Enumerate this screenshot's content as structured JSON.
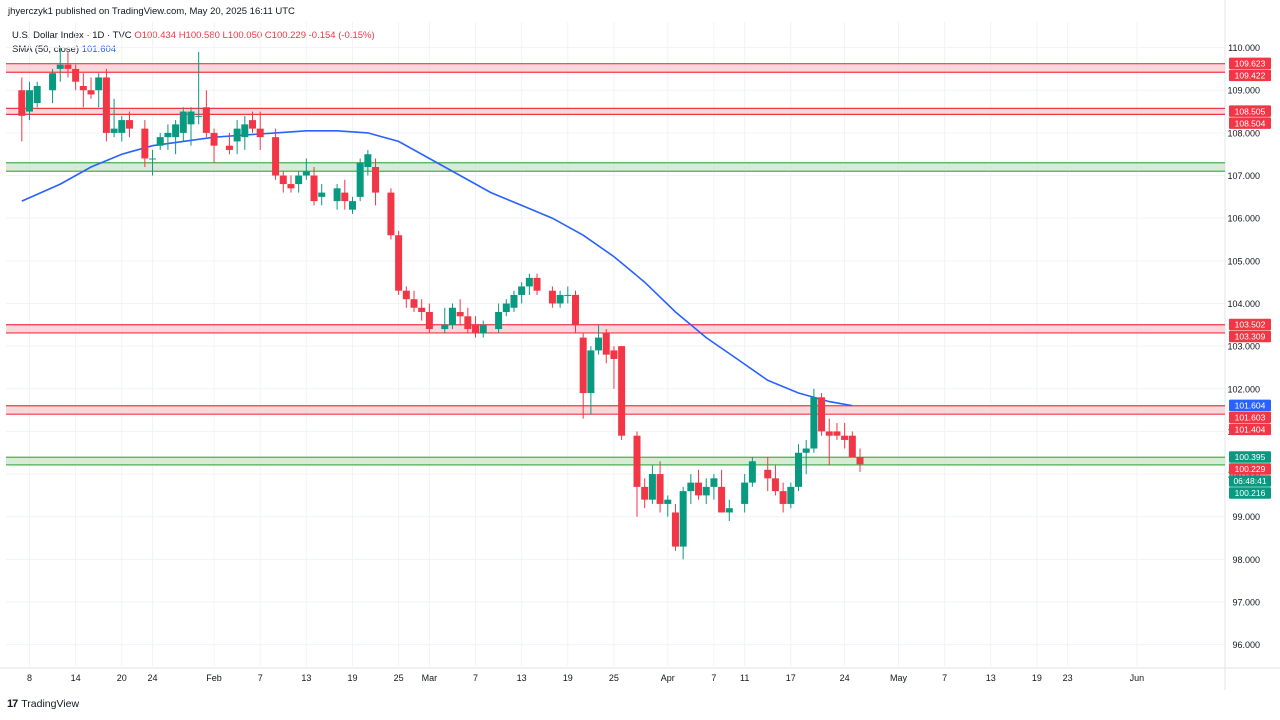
{
  "header": {
    "publisher_line": "jhyerczyk1 published on TradingView.com, May 20, 2025 16:11 UTC",
    "symbol": "U.S. Dollar Index · 1D · TVC",
    "open": "O100.434",
    "high": "H100.580",
    "low": "L100.050",
    "close": "C100.229",
    "change": "-0.154 (-0.15%)",
    "sma_label": "SMA (50, close)",
    "sma_value": "101.604"
  },
  "footer": {
    "logo_glyph": "17",
    "brand": "TradingView"
  },
  "colors": {
    "up": "#089981",
    "down": "#f23645",
    "ma": "#2962ff",
    "zone_red_fill": "#f8c9cd",
    "zone_green_fill": "#c8e6c9",
    "zone_red_line": "#f23645",
    "zone_green_line": "#4caf50",
    "grid": "#f0f3fa",
    "axis_text": "#131722"
  },
  "chart_data": {
    "type": "candlestick",
    "title": "U.S. Dollar Index · 1D · TVC",
    "ylim": [
      95.5,
      110.6
    ],
    "grid": true,
    "y_ticks": [
      "96.000",
      "97.000",
      "98.000",
      "99.000",
      "100.000",
      "101.000",
      "102.000",
      "103.000",
      "104.000",
      "105.000",
      "106.000",
      "107.000",
      "108.000",
      "109.000",
      "110.000"
    ],
    "x_ticks": [
      {
        "label": "8",
        "day": 0
      },
      {
        "label": "14",
        "day": 6
      },
      {
        "label": "20",
        "day": 12
      },
      {
        "label": "24",
        "day": 16
      },
      {
        "label": "Feb",
        "day": 24
      },
      {
        "label": "7",
        "day": 30
      },
      {
        "label": "13",
        "day": 36
      },
      {
        "label": "19",
        "day": 42
      },
      {
        "label": "25",
        "day": 48
      },
      {
        "label": "Mar",
        "day": 52
      },
      {
        "label": "7",
        "day": 58
      },
      {
        "label": "13",
        "day": 64
      },
      {
        "label": "19",
        "day": 70
      },
      {
        "label": "25",
        "day": 76
      },
      {
        "label": "Apr",
        "day": 83
      },
      {
        "label": "7",
        "day": 89
      },
      {
        "label": "11",
        "day": 93
      },
      {
        "label": "17",
        "day": 99
      },
      {
        "label": "24",
        "day": 106
      },
      {
        "label": "May",
        "day": 113
      },
      {
        "label": "7",
        "day": 119
      },
      {
        "label": "13",
        "day": 125
      },
      {
        "label": "19",
        "day": 131
      },
      {
        "label": "23",
        "day": 135
      },
      {
        "label": "Jun",
        "day": 144
      }
    ],
    "candles": [
      {
        "d": -1,
        "o": 109.0,
        "h": 109.3,
        "l": 107.8,
        "c": 108.4
      },
      {
        "d": 0,
        "o": 108.5,
        "h": 109.2,
        "l": 108.3,
        "c": 109.0
      },
      {
        "d": 1,
        "o": 108.7,
        "h": 109.2,
        "l": 108.6,
        "c": 109.1
      },
      {
        "d": 3,
        "o": 109.0,
        "h": 109.5,
        "l": 108.7,
        "c": 109.4
      },
      {
        "d": 4,
        "o": 109.5,
        "h": 110.0,
        "l": 109.2,
        "c": 109.6
      },
      {
        "d": 5,
        "o": 109.6,
        "h": 109.9,
        "l": 109.3,
        "c": 109.5
      },
      {
        "d": 6,
        "o": 109.5,
        "h": 109.6,
        "l": 109.0,
        "c": 109.2
      },
      {
        "d": 7,
        "o": 109.1,
        "h": 109.4,
        "l": 108.6,
        "c": 109.0
      },
      {
        "d": 8,
        "o": 109.0,
        "h": 109.3,
        "l": 108.8,
        "c": 108.9
      },
      {
        "d": 9,
        "o": 109.0,
        "h": 109.4,
        "l": 108.6,
        "c": 109.3
      },
      {
        "d": 10,
        "o": 109.3,
        "h": 109.5,
        "l": 107.8,
        "c": 108.0
      },
      {
        "d": 11,
        "o": 108.0,
        "h": 108.8,
        "l": 107.9,
        "c": 108.1
      },
      {
        "d": 12,
        "o": 108.0,
        "h": 108.4,
        "l": 107.8,
        "c": 108.3
      },
      {
        "d": 13,
        "o": 108.3,
        "h": 108.5,
        "l": 107.9,
        "c": 108.1
      },
      {
        "d": 15,
        "o": 108.1,
        "h": 108.3,
        "l": 107.2,
        "c": 107.4
      },
      {
        "d": 16,
        "o": 107.4,
        "h": 107.6,
        "l": 107.0,
        "c": 107.4
      },
      {
        "d": 17,
        "o": 107.7,
        "h": 108.0,
        "l": 107.6,
        "c": 107.9
      },
      {
        "d": 18,
        "o": 107.9,
        "h": 108.2,
        "l": 107.6,
        "c": 108.0
      },
      {
        "d": 19,
        "o": 107.9,
        "h": 108.3,
        "l": 107.5,
        "c": 108.2
      },
      {
        "d": 20,
        "o": 108.0,
        "h": 108.6,
        "l": 107.8,
        "c": 108.5
      },
      {
        "d": 21,
        "o": 108.2,
        "h": 108.6,
        "l": 107.7,
        "c": 108.5
      },
      {
        "d": 22,
        "o": 108.4,
        "h": 109.9,
        "l": 108.2,
        "c": 108.4
      },
      {
        "d": 23,
        "o": 108.6,
        "h": 109.0,
        "l": 107.9,
        "c": 108.0
      },
      {
        "d": 24,
        "o": 108.0,
        "h": 108.1,
        "l": 107.3,
        "c": 107.7
      },
      {
        "d": 26,
        "o": 107.7,
        "h": 108.0,
        "l": 107.5,
        "c": 107.6
      },
      {
        "d": 27,
        "o": 107.8,
        "h": 108.3,
        "l": 107.5,
        "c": 108.1
      },
      {
        "d": 28,
        "o": 107.9,
        "h": 108.4,
        "l": 107.6,
        "c": 108.2
      },
      {
        "d": 29,
        "o": 108.3,
        "h": 108.5,
        "l": 108.0,
        "c": 108.1
      },
      {
        "d": 30,
        "o": 108.1,
        "h": 108.5,
        "l": 107.6,
        "c": 107.9
      },
      {
        "d": 32,
        "o": 107.9,
        "h": 108.1,
        "l": 106.9,
        "c": 107.0
      },
      {
        "d": 33,
        "o": 107.0,
        "h": 107.1,
        "l": 106.6,
        "c": 106.8
      },
      {
        "d": 34,
        "o": 106.8,
        "h": 107.0,
        "l": 106.6,
        "c": 106.7
      },
      {
        "d": 35,
        "o": 106.8,
        "h": 107.1,
        "l": 106.6,
        "c": 107.0
      },
      {
        "d": 36,
        "o": 107.0,
        "h": 107.4,
        "l": 106.9,
        "c": 107.1
      },
      {
        "d": 37,
        "o": 107.0,
        "h": 107.2,
        "l": 106.3,
        "c": 106.4
      },
      {
        "d": 38,
        "o": 106.5,
        "h": 106.8,
        "l": 106.3,
        "c": 106.6
      },
      {
        "d": 40,
        "o": 106.4,
        "h": 106.8,
        "l": 106.2,
        "c": 106.7
      },
      {
        "d": 41,
        "o": 106.6,
        "h": 106.9,
        "l": 106.2,
        "c": 106.4
      },
      {
        "d": 42,
        "o": 106.2,
        "h": 106.5,
        "l": 106.1,
        "c": 106.4
      },
      {
        "d": 43,
        "o": 106.5,
        "h": 107.4,
        "l": 106.4,
        "c": 107.3
      },
      {
        "d": 44,
        "o": 107.2,
        "h": 107.6,
        "l": 107.0,
        "c": 107.5
      },
      {
        "d": 45,
        "o": 107.2,
        "h": 107.4,
        "l": 106.3,
        "c": 106.6
      },
      {
        "d": 47,
        "o": 106.6,
        "h": 106.7,
        "l": 105.5,
        "c": 105.6
      },
      {
        "d": 48,
        "o": 105.6,
        "h": 105.7,
        "l": 104.2,
        "c": 104.3
      },
      {
        "d": 49,
        "o": 104.3,
        "h": 104.4,
        "l": 103.9,
        "c": 104.1
      },
      {
        "d": 50,
        "o": 104.1,
        "h": 104.3,
        "l": 103.8,
        "c": 103.9
      },
      {
        "d": 51,
        "o": 103.9,
        "h": 104.1,
        "l": 103.6,
        "c": 103.8
      },
      {
        "d": 52,
        "o": 103.8,
        "h": 104.0,
        "l": 103.3,
        "c": 103.4
      },
      {
        "d": 54,
        "o": 103.4,
        "h": 103.9,
        "l": 103.3,
        "c": 103.5
      },
      {
        "d": 55,
        "o": 103.5,
        "h": 104.0,
        "l": 103.4,
        "c": 103.9
      },
      {
        "d": 56,
        "o": 103.8,
        "h": 104.1,
        "l": 103.5,
        "c": 103.7
      },
      {
        "d": 57,
        "o": 103.7,
        "h": 103.9,
        "l": 103.3,
        "c": 103.4
      },
      {
        "d": 58,
        "o": 103.5,
        "h": 103.7,
        "l": 103.2,
        "c": 103.3
      },
      {
        "d": 59,
        "o": 103.3,
        "h": 103.6,
        "l": 103.2,
        "c": 103.5
      },
      {
        "d": 61,
        "o": 103.4,
        "h": 104.0,
        "l": 103.3,
        "c": 103.8
      },
      {
        "d": 62,
        "o": 103.8,
        "h": 104.1,
        "l": 103.7,
        "c": 104.0
      },
      {
        "d": 63,
        "o": 103.9,
        "h": 104.3,
        "l": 103.8,
        "c": 104.2
      },
      {
        "d": 64,
        "o": 104.2,
        "h": 104.5,
        "l": 104.0,
        "c": 104.4
      },
      {
        "d": 65,
        "o": 104.4,
        "h": 104.7,
        "l": 104.2,
        "c": 104.6
      },
      {
        "d": 66,
        "o": 104.6,
        "h": 104.7,
        "l": 104.2,
        "c": 104.3
      },
      {
        "d": 68,
        "o": 104.3,
        "h": 104.4,
        "l": 103.9,
        "c": 104.0
      },
      {
        "d": 69,
        "o": 104.0,
        "h": 104.3,
        "l": 103.9,
        "c": 104.2
      },
      {
        "d": 70,
        "o": 104.2,
        "h": 104.4,
        "l": 104.0,
        "c": 104.2
      },
      {
        "d": 71,
        "o": 104.2,
        "h": 104.3,
        "l": 103.3,
        "c": 103.5
      },
      {
        "d": 72,
        "o": 103.2,
        "h": 103.3,
        "l": 101.3,
        "c": 101.9
      },
      {
        "d": 73,
        "o": 101.9,
        "h": 103.0,
        "l": 101.4,
        "c": 102.9
      },
      {
        "d": 74,
        "o": 102.9,
        "h": 103.5,
        "l": 102.8,
        "c": 103.2
      },
      {
        "d": 75,
        "o": 103.3,
        "h": 103.4,
        "l": 102.6,
        "c": 102.8
      },
      {
        "d": 76,
        "o": 102.9,
        "h": 103.0,
        "l": 102.0,
        "c": 102.7
      },
      {
        "d": 77,
        "o": 103.0,
        "h": 103.0,
        "l": 100.8,
        "c": 100.9
      },
      {
        "d": 79,
        "o": 100.9,
        "h": 101.0,
        "l": 99.0,
        "c": 99.7
      },
      {
        "d": 80,
        "o": 99.7,
        "h": 99.9,
        "l": 99.2,
        "c": 99.4
      },
      {
        "d": 81,
        "o": 99.4,
        "h": 100.2,
        "l": 99.3,
        "c": 100.0
      },
      {
        "d": 82,
        "o": 100.0,
        "h": 100.3,
        "l": 99.1,
        "c": 99.3
      },
      {
        "d": 83,
        "o": 99.3,
        "h": 99.5,
        "l": 99.0,
        "c": 99.4
      },
      {
        "d": 84,
        "o": 99.1,
        "h": 99.3,
        "l": 98.2,
        "c": 98.3
      },
      {
        "d": 85,
        "o": 98.3,
        "h": 99.7,
        "l": 98.0,
        "c": 99.6
      },
      {
        "d": 86,
        "o": 99.6,
        "h": 100.0,
        "l": 99.3,
        "c": 99.8
      },
      {
        "d": 87,
        "o": 99.8,
        "h": 100.1,
        "l": 99.4,
        "c": 99.5
      },
      {
        "d": 88,
        "o": 99.5,
        "h": 99.9,
        "l": 99.3,
        "c": 99.7
      },
      {
        "d": 89,
        "o": 99.7,
        "h": 100.0,
        "l": 99.4,
        "c": 99.9
      },
      {
        "d": 90,
        "o": 99.7,
        "h": 100.1,
        "l": 99.1,
        "c": 99.1
      },
      {
        "d": 91,
        "o": 99.1,
        "h": 99.4,
        "l": 98.9,
        "c": 99.2
      },
      {
        "d": 93,
        "o": 99.3,
        "h": 100.0,
        "l": 99.1,
        "c": 99.8
      },
      {
        "d": 94,
        "o": 99.8,
        "h": 100.4,
        "l": 99.7,
        "c": 100.3
      },
      {
        "d": 96,
        "o": 100.1,
        "h": 100.4,
        "l": 99.6,
        "c": 99.9
      },
      {
        "d": 97,
        "o": 99.9,
        "h": 100.2,
        "l": 99.5,
        "c": 99.6
      },
      {
        "d": 98,
        "o": 99.6,
        "h": 99.8,
        "l": 99.1,
        "c": 99.3
      },
      {
        "d": 99,
        "o": 99.3,
        "h": 99.8,
        "l": 99.2,
        "c": 99.7
      },
      {
        "d": 100,
        "o": 99.7,
        "h": 100.7,
        "l": 99.6,
        "c": 100.5
      },
      {
        "d": 101,
        "o": 100.5,
        "h": 100.8,
        "l": 100.0,
        "c": 100.6
      },
      {
        "d": 102,
        "o": 100.6,
        "h": 102.0,
        "l": 100.5,
        "c": 101.8
      },
      {
        "d": 103,
        "o": 101.8,
        "h": 101.9,
        "l": 100.9,
        "c": 101.0
      },
      {
        "d": 104,
        "o": 101.0,
        "h": 101.3,
        "l": 100.2,
        "c": 100.9
      },
      {
        "d": 105,
        "o": 101.0,
        "h": 101.2,
        "l": 100.8,
        "c": 100.9
      },
      {
        "d": 106,
        "o": 100.9,
        "h": 101.2,
        "l": 100.6,
        "c": 100.8
      },
      {
        "d": 107,
        "o": 100.9,
        "h": 101.0,
        "l": 100.4,
        "c": 100.4
      },
      {
        "d": 108,
        "o": 100.4,
        "h": 100.6,
        "l": 100.05,
        "c": 100.229
      }
    ],
    "sma": {
      "name": "SMA (50, close)",
      "points": [
        [
          -1,
          106.4
        ],
        [
          4,
          106.8
        ],
        [
          8,
          107.2
        ],
        [
          12,
          107.5
        ],
        [
          16,
          107.7
        ],
        [
          20,
          107.8
        ],
        [
          24,
          107.9
        ],
        [
          28,
          107.95
        ],
        [
          32,
          108.0
        ],
        [
          36,
          108.05
        ],
        [
          40,
          108.05
        ],
        [
          44,
          108.0
        ],
        [
          48,
          107.8
        ],
        [
          52,
          107.4
        ],
        [
          56,
          107.0
        ],
        [
          60,
          106.6
        ],
        [
          64,
          106.3
        ],
        [
          68,
          106.0
        ],
        [
          70,
          105.8
        ],
        [
          72,
          105.6
        ],
        [
          76,
          105.1
        ],
        [
          80,
          104.5
        ],
        [
          84,
          103.8
        ],
        [
          88,
          103.2
        ],
        [
          92,
          102.7
        ],
        [
          96,
          102.2
        ],
        [
          100,
          101.9
        ],
        [
          104,
          101.7
        ],
        [
          107,
          101.604
        ]
      ]
    },
    "zones": [
      {
        "color": "red",
        "top": 109.623,
        "bottom": 109.422
      },
      {
        "color": "red",
        "top": 108.505,
        "bottom": 108.504
      },
      {
        "color": "green",
        "top": 107.3,
        "bottom": 107.1
      },
      {
        "color": "red",
        "top": 103.502,
        "bottom": 103.309
      },
      {
        "color": "red",
        "top": 101.603,
        "bottom": 101.404
      },
      {
        "color": "green",
        "top": 100.395,
        "bottom": 100.216
      }
    ],
    "price_labels": [
      {
        "text": "109.623",
        "value": 109.623,
        "color": "red"
      },
      {
        "text": "109.422",
        "value": 109.422,
        "color": "red"
      },
      {
        "text": "108.505",
        "value": 108.505,
        "color": "red"
      },
      {
        "text": "108.504",
        "value": 108.504,
        "color": "red"
      },
      {
        "text": "103.502",
        "value": 103.502,
        "color": "red"
      },
      {
        "text": "103.309",
        "value": 103.309,
        "color": "red"
      },
      {
        "text": "101.604",
        "value": 101.604,
        "color": "blue"
      },
      {
        "text": "101.603",
        "value": 101.603,
        "color": "red"
      },
      {
        "text": "101.404",
        "value": 101.404,
        "color": "red"
      },
      {
        "text": "100.395",
        "value": 100.395,
        "color": "green"
      },
      {
        "text": "100.229",
        "value": 100.229,
        "color": "red"
      },
      {
        "text": "06:48:41",
        "value": 100.229,
        "color": "red_sub"
      },
      {
        "text": "100.216",
        "value": 100.216,
        "color": "green"
      }
    ]
  }
}
